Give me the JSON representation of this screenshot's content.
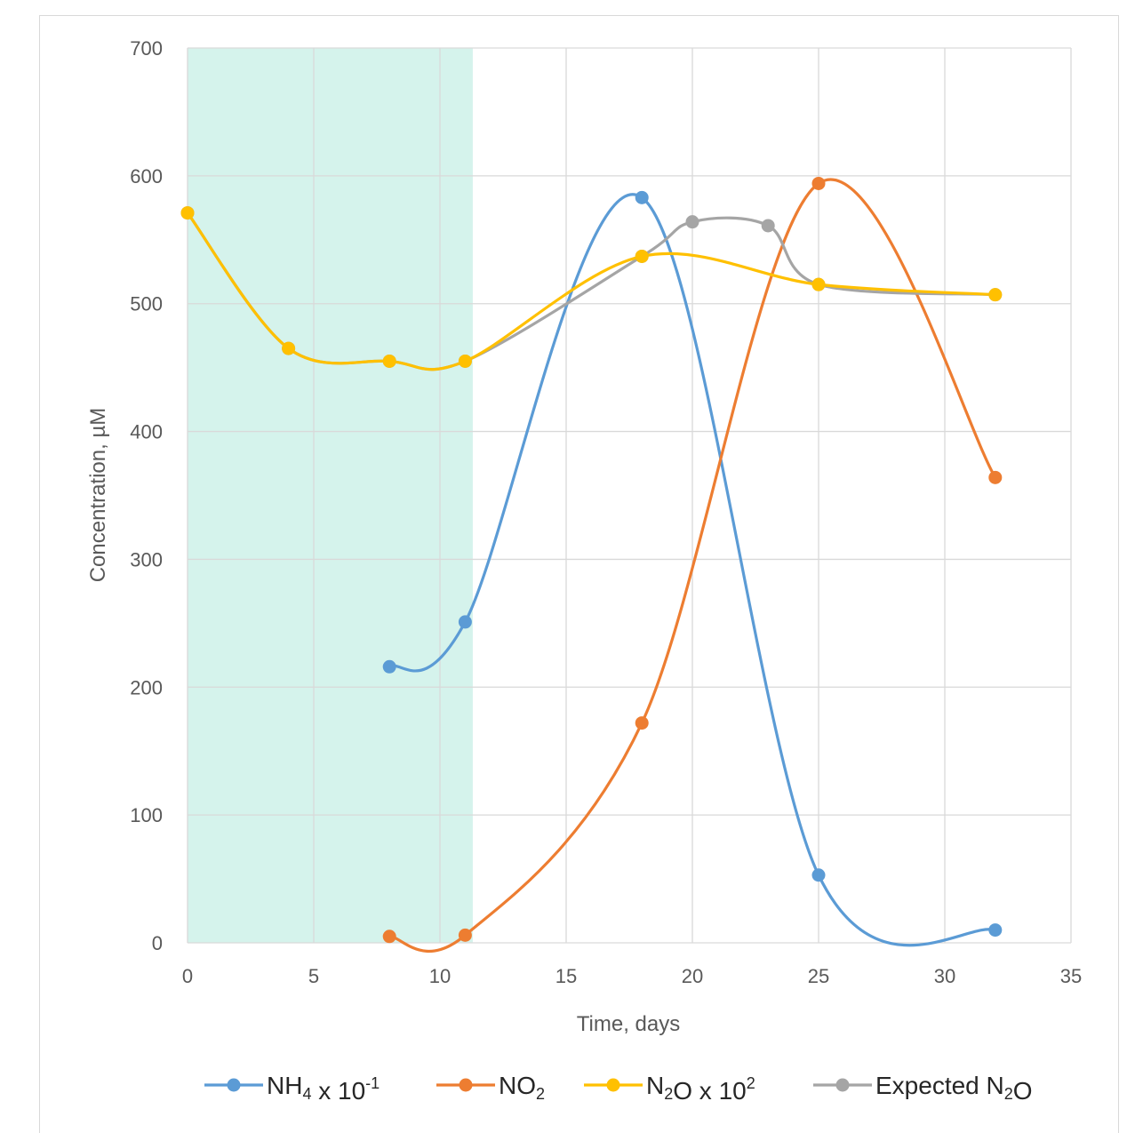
{
  "chart_data": {
    "type": "line",
    "title": "",
    "xlabel": "Time, days",
    "ylabel": "Concentration, µM",
    "xlim": [
      0,
      35
    ],
    "ylim": [
      0,
      700
    ],
    "x_ticks": [
      0,
      5,
      10,
      15,
      20,
      25,
      30,
      35
    ],
    "y_ticks": [
      0,
      100,
      200,
      300,
      400,
      500,
      600,
      700
    ],
    "grid": true,
    "legend_position": "bottom",
    "shaded_region": {
      "x_start": 0,
      "x_end": 11.3,
      "color": "#d5f3ec"
    },
    "series": [
      {
        "name": "NH4 x 10-1",
        "legend_parts": [
          [
            "NH",
            "normal"
          ],
          [
            "4",
            "sub"
          ],
          [
            " x 10",
            "normal"
          ],
          [
            "-1",
            "sup"
          ]
        ],
        "color": "#5b9bd5",
        "x": [
          8,
          11,
          18,
          25,
          32
        ],
        "y": [
          216,
          251,
          583,
          53,
          10
        ]
      },
      {
        "name": "NO2",
        "legend_parts": [
          [
            "NO",
            "normal"
          ],
          [
            "2",
            "sub"
          ]
        ],
        "color": "#ed7d31",
        "x": [
          8,
          11,
          18,
          25,
          32
        ],
        "y": [
          5,
          6,
          172,
          594,
          364
        ]
      },
      {
        "name": "Expected N2O",
        "legend_parts": [
          [
            "Expected N",
            "normal"
          ],
          [
            "2",
            "sub"
          ],
          [
            "O",
            "normal"
          ]
        ],
        "color": "#a5a5a5",
        "x": [
          0,
          4,
          8,
          11,
          18,
          20,
          23,
          25,
          32
        ],
        "y": [
          571,
          465,
          455,
          455,
          537,
          564,
          561,
          515,
          507
        ]
      },
      {
        "name": "N2O x 102",
        "legend_parts": [
          [
            "N",
            "normal"
          ],
          [
            "2",
            "sub"
          ],
          [
            "O x 10",
            "normal"
          ],
          [
            "2",
            "sup"
          ]
        ],
        "color": "#ffc000",
        "x": [
          0,
          4,
          8,
          11,
          18,
          25,
          32
        ],
        "y": [
          571,
          465,
          455,
          455,
          537,
          515,
          507
        ]
      }
    ],
    "legend_order": [
      "NH4 x 10-1",
      "NO2",
      "N2O x 102",
      "Expected N2O"
    ]
  }
}
